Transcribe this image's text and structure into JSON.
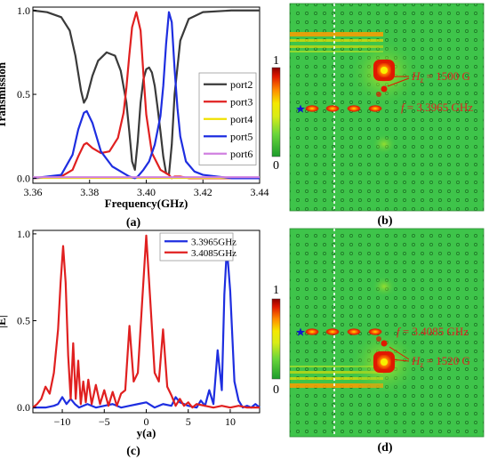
{
  "panels": {
    "a": "(a)",
    "b": "(b)",
    "c": "(c)",
    "d": "(d)"
  },
  "chart_data": [
    {
      "id": "a",
      "type": "line",
      "xlabel": "Frequency(GHz)",
      "ylabel": "Transmission",
      "xlim": [
        3.36,
        3.44
      ],
      "ylim": [
        0,
        1.0
      ],
      "xticks": [
        "3.36",
        "3.38",
        "3.40",
        "3.42",
        "3.44"
      ],
      "yticks": [
        "0.0",
        "0.5",
        "1.0"
      ],
      "xtick_values": [
        3.36,
        3.38,
        3.4,
        3.42,
        3.44
      ],
      "ytick_values": [
        0,
        0.5,
        1.0
      ],
      "legend_position": "middle-right",
      "series": [
        {
          "name": "port2",
          "color": "#3a3a3a",
          "x": [
            3.36,
            3.365,
            3.37,
            3.373,
            3.375,
            3.377,
            3.378,
            3.379,
            3.381,
            3.383,
            3.386,
            3.389,
            3.391,
            3.393,
            3.394,
            3.395,
            3.396,
            3.397,
            3.398,
            3.399,
            3.4,
            3.401,
            3.402,
            3.403,
            3.404,
            3.405,
            3.406,
            3.407,
            3.408,
            3.409,
            3.41,
            3.412,
            3.415,
            3.42,
            3.43,
            3.44
          ],
          "values": [
            1.0,
            0.99,
            0.96,
            0.88,
            0.73,
            0.52,
            0.45,
            0.48,
            0.61,
            0.7,
            0.75,
            0.73,
            0.64,
            0.45,
            0.28,
            0.1,
            0.05,
            0.22,
            0.45,
            0.59,
            0.65,
            0.66,
            0.63,
            0.55,
            0.42,
            0.28,
            0.13,
            0.03,
            0.02,
            0.2,
            0.5,
            0.82,
            0.95,
            0.99,
            1.0,
            1.0
          ]
        },
        {
          "name": "port3",
          "color": "#e02020",
          "x": [
            3.36,
            3.37,
            3.374,
            3.376,
            3.378,
            3.379,
            3.381,
            3.384,
            3.387,
            3.39,
            3.392,
            3.393,
            3.394,
            3.395,
            3.3965,
            3.398,
            3.399,
            3.4,
            3.402,
            3.405,
            3.408,
            3.409,
            3.41,
            3.412,
            3.415,
            3.42,
            3.43,
            3.44
          ],
          "values": [
            0.0,
            0.01,
            0.05,
            0.13,
            0.2,
            0.21,
            0.18,
            0.15,
            0.16,
            0.24,
            0.39,
            0.54,
            0.73,
            0.9,
            0.99,
            0.88,
            0.62,
            0.38,
            0.15,
            0.05,
            0.02,
            0.0,
            0.01,
            0.01,
            0.0,
            0.0,
            0.0,
            0.0
          ]
        },
        {
          "name": "port4",
          "color": "#f0e000",
          "x": [
            3.36,
            3.44
          ],
          "values": [
            0.002,
            0.002
          ]
        },
        {
          "name": "port5",
          "color": "#1e2ee0",
          "x": [
            3.36,
            3.37,
            3.374,
            3.376,
            3.378,
            3.379,
            3.381,
            3.384,
            3.388,
            3.392,
            3.394,
            3.396,
            3.397,
            3.399,
            3.401,
            3.403,
            3.405,
            3.406,
            3.407,
            3.408,
            3.409,
            3.41,
            3.411,
            3.412,
            3.414,
            3.417,
            3.42,
            3.43,
            3.44
          ],
          "values": [
            0.0,
            0.02,
            0.14,
            0.29,
            0.39,
            0.4,
            0.33,
            0.16,
            0.07,
            0.03,
            0.01,
            0.0,
            0.01,
            0.05,
            0.1,
            0.2,
            0.37,
            0.55,
            0.8,
            0.99,
            0.93,
            0.65,
            0.42,
            0.25,
            0.1,
            0.04,
            0.02,
            0.0,
            0.0
          ]
        },
        {
          "name": "port6",
          "color": "#d080e0",
          "x": [
            3.36,
            3.44
          ],
          "values": [
            0.006,
            0.006
          ]
        }
      ]
    },
    {
      "id": "c",
      "type": "line",
      "xlabel": "y(a)",
      "ylabel": "|E|",
      "xlim": [
        -13.5,
        13.5
      ],
      "ylim": [
        0,
        1.0
      ],
      "xticks": [
        "−10",
        "−5",
        "0",
        "5",
        "10"
      ],
      "yticks": [
        "0.0",
        "0.5",
        "1.0"
      ],
      "xtick_values": [
        -10,
        -5,
        0,
        5,
        10
      ],
      "ytick_values": [
        0,
        0.5,
        1.0
      ],
      "legend_position": "top-right",
      "series": [
        {
          "name": "3.3965GHz",
          "color": "#1e2ee0",
          "x": [
            -13.5,
            -12,
            -11,
            -10.5,
            -10,
            -9.5,
            -9,
            -8.5,
            -8,
            -7,
            -6,
            -5,
            -4,
            -3,
            -2,
            -1,
            0,
            1,
            2,
            3,
            3.5,
            4,
            5,
            6,
            6.5,
            7,
            7.5,
            8,
            8.5,
            9,
            9.3,
            9.6,
            10,
            10.5,
            11,
            11.5,
            12,
            12.5,
            13,
            13.5
          ],
          "values": [
            0.0,
            0.0,
            0.01,
            0.02,
            0.06,
            0.02,
            0.05,
            0.02,
            0.0,
            0.02,
            0.0,
            0.01,
            0.02,
            0.0,
            0.01,
            0.02,
            0.03,
            0.0,
            0.02,
            0.01,
            0.06,
            0.03,
            0.01,
            0.0,
            0.04,
            0.01,
            0.1,
            0.02,
            0.33,
            0.1,
            0.65,
            0.92,
            0.67,
            0.15,
            0.04,
            0.0,
            0.01,
            0.0,
            0.02,
            0.0
          ]
        },
        {
          "name": "3.4085GHz",
          "color": "#e02020",
          "x": [
            -13.5,
            -13,
            -12.5,
            -12,
            -11.5,
            -11,
            -10.5,
            -10.2,
            -9.9,
            -9.6,
            -9.3,
            -9,
            -8.7,
            -8.4,
            -8.1,
            -7.8,
            -7.5,
            -7.2,
            -6.9,
            -6.5,
            -6,
            -5.5,
            -5,
            -4.5,
            -4,
            -3.5,
            -3,
            -2.5,
            -2,
            -1.5,
            -1,
            -0.5,
            0,
            0.5,
            1,
            1.5,
            2,
            2.5,
            3,
            3.5,
            4,
            4.5,
            5,
            5.5,
            6,
            7,
            8,
            9,
            10,
            11,
            12,
            13,
            13.5
          ],
          "values": [
            0.0,
            0.02,
            0.05,
            0.12,
            0.08,
            0.2,
            0.45,
            0.72,
            0.93,
            0.72,
            0.3,
            0.05,
            0.37,
            0.05,
            0.27,
            0.02,
            0.15,
            0.03,
            0.16,
            0.02,
            0.13,
            0.02,
            0.1,
            0.01,
            0.09,
            0.01,
            0.08,
            0.1,
            0.47,
            0.15,
            0.2,
            0.6,
            0.99,
            0.6,
            0.2,
            0.15,
            0.45,
            0.12,
            0.07,
            0.01,
            0.05,
            0.01,
            0.03,
            0.0,
            0.02,
            0.01,
            0.0,
            0.01,
            0.0,
            0.01,
            0.0,
            0.0,
            0.0
          ]
        }
      ]
    },
    {
      "id": "b",
      "type": "heatmap",
      "colorbar": {
        "max_label": "1",
        "min_label": "0",
        "colors": [
          "#1c9c2c",
          "#3ecc40",
          "#b8e020",
          "#f0f000",
          "#ff9000",
          "#e02000",
          "#8a0000"
        ]
      },
      "background_color": "#3ec44a",
      "annotations": {
        "field": "H",
        "field_sub": "z",
        "field_value": " = 1500 G",
        "freq_prefix": "f",
        "freq_value": " = 3.3965 GHz"
      }
    },
    {
      "id": "d",
      "type": "heatmap",
      "colorbar": {
        "max_label": "1",
        "min_label": "0",
        "colors": [
          "#1c9c2c",
          "#3ecc40",
          "#b8e020",
          "#f0f000",
          "#ff9000",
          "#e02000",
          "#8a0000"
        ]
      },
      "background_color": "#3ec44a",
      "annotations": {
        "field": "H",
        "field_sub": "z",
        "field_value": " = 1520 G",
        "freq_prefix": "f",
        "freq_value": " = 3.4085 GHz"
      }
    }
  ]
}
